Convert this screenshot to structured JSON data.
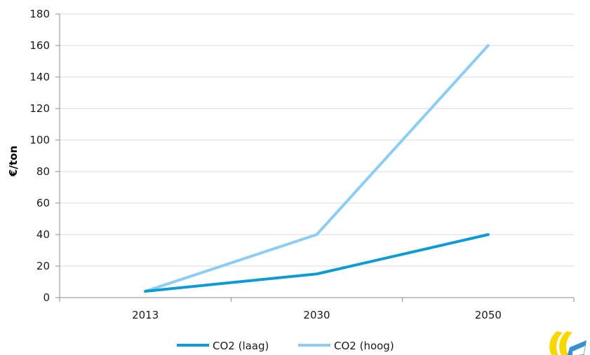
{
  "chart_data": {
    "type": "line",
    "title": "",
    "xlabel": "",
    "ylabel": "€/ton",
    "categories": [
      "2013",
      "2030",
      "2050"
    ],
    "ylim": [
      0,
      180
    ],
    "yticks": [
      "0",
      "20",
      "40",
      "60",
      "80",
      "100",
      "120",
      "140",
      "160",
      "180"
    ],
    "grid": true,
    "legend": "bottom-center",
    "series": [
      {
        "name": "CO2 (laag)",
        "values": [
          4,
          15,
          40
        ],
        "color": "#0e9bd3"
      },
      {
        "name": "CO2 (hoog)",
        "values": [
          4,
          40,
          160
        ],
        "color": "#8dcdf3"
      }
    ]
  },
  "logo": {
    "icon": "brand-logo-icon",
    "colors": [
      "#f5d800",
      "#3a8fd0"
    ]
  }
}
